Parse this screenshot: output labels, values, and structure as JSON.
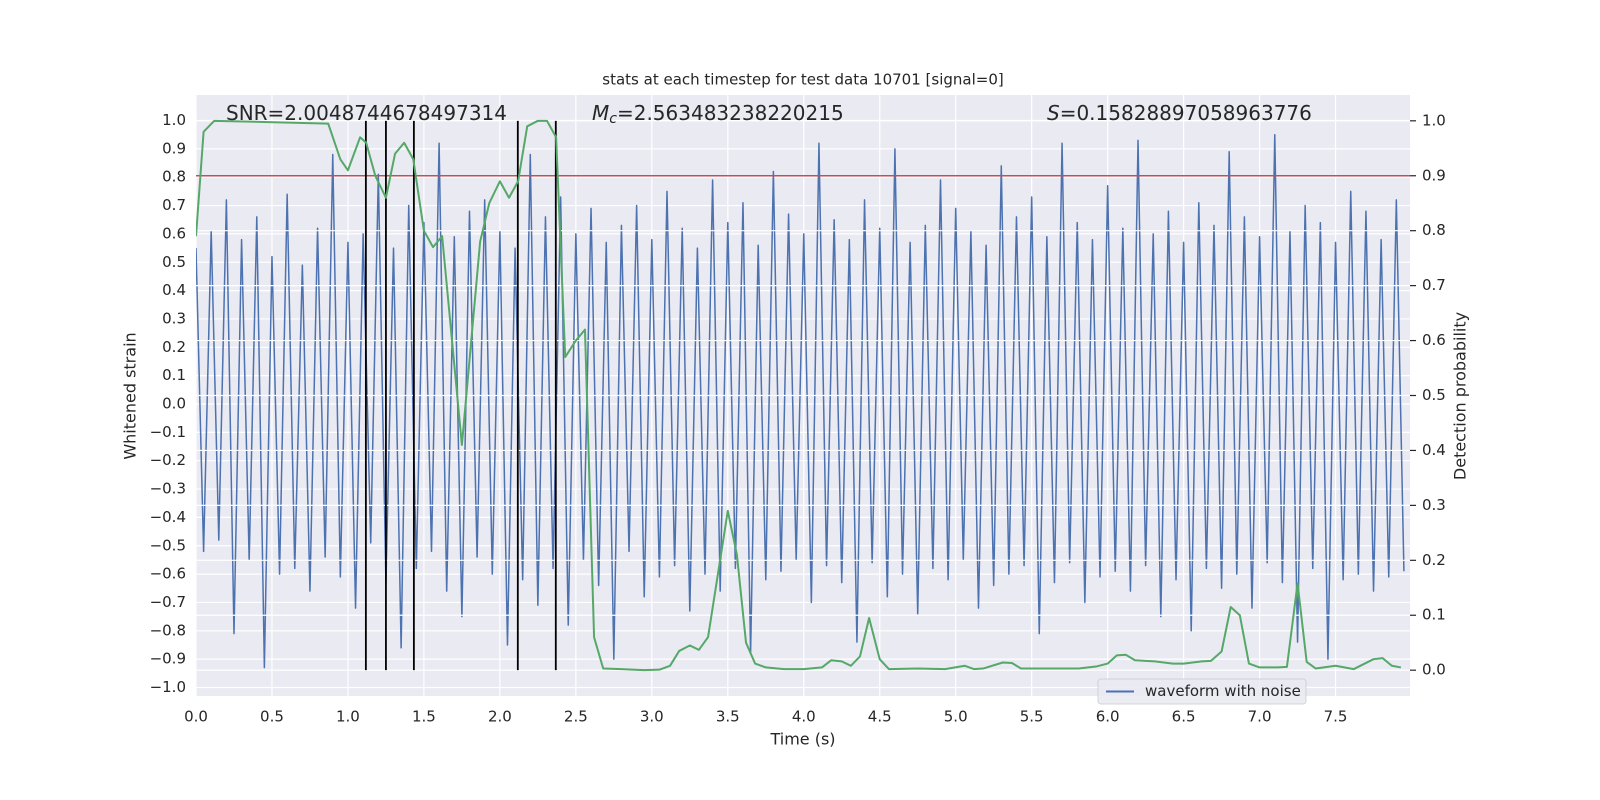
{
  "chart_data": {
    "type": "line",
    "title": "stats at each timestep for test data 10701 [signal=0]",
    "xlabel": "Time (s)",
    "ylabel": "Whitened strain",
    "y2label": "Detection probability",
    "annotations": [
      {
        "text": "SNR=2.0048744678497314"
      },
      {
        "symbol": "M",
        "subscript": "c",
        "text": "=2.563483238220215"
      },
      {
        "symbol": "S",
        "text": "=0.15828897058963776"
      }
    ],
    "xlim": [
      0,
      7.99
    ],
    "ylim": [
      -1.03,
      1.09
    ],
    "y2lim": [
      -0.047,
      1.047
    ],
    "xticks": [
      {
        "value": 0,
        "label": "0.0"
      },
      0.5,
      {
        "value": 1,
        "label": "1.0"
      },
      1.5,
      {
        "value": 2,
        "label": "2.0"
      },
      2.5,
      {
        "value": 3,
        "label": "3.0"
      },
      3.5,
      {
        "value": 4,
        "label": "4.0"
      },
      4.5,
      {
        "value": 5,
        "label": "5.0"
      },
      5.5,
      {
        "value": 6,
        "label": "6.0"
      },
      6.5,
      {
        "value": 7,
        "label": "7.0"
      },
      7.5
    ],
    "yticks": [
      {
        "value": -1,
        "label": "−1.0"
      },
      {
        "value": -0.9,
        "label": "−0.9"
      },
      {
        "value": -0.8,
        "label": "−0.8"
      },
      {
        "value": -0.7,
        "label": "−0.7"
      },
      {
        "value": -0.6,
        "label": "−0.6"
      },
      {
        "value": -0.5,
        "label": "−0.5"
      },
      {
        "value": -0.4,
        "label": "−0.4"
      },
      {
        "value": -0.3,
        "label": "−0.3"
      },
      {
        "value": -0.2,
        "label": "−0.2"
      },
      {
        "value": -0.1,
        "label": "−0.1"
      },
      {
        "value": 0,
        "label": "0.0"
      },
      0.1,
      0.2,
      0.3,
      0.4,
      0.5,
      0.6,
      0.7,
      0.8,
      0.9,
      {
        "value": 1,
        "label": "1.0"
      }
    ],
    "y2ticks": [
      {
        "value": 0,
        "label": "0.0"
      },
      0.1,
      0.2,
      0.3,
      0.4,
      0.5,
      0.6,
      0.7,
      0.8,
      0.9,
      {
        "value": 1,
        "label": "1.0"
      }
    ],
    "grid": true,
    "background": "#eaeaf2",
    "legend": "best",
    "series": [
      {
        "name": "waveform with noise",
        "color": "#4c72b0",
        "x": [
          0,
          0.05,
          0.1,
          0.15,
          0.2,
          0.25,
          0.3,
          0.35,
          0.4,
          0.45,
          0.5,
          0.55,
          0.6,
          0.65,
          0.7,
          0.75,
          0.8,
          0.85,
          0.9,
          0.95,
          1,
          1.05,
          1.1,
          1.15,
          1.2,
          1.25,
          1.3,
          1.35,
          1.4,
          1.45,
          1.5,
          1.55,
          1.6,
          1.65,
          1.7,
          1.75,
          1.8,
          1.85,
          1.9,
          1.95,
          2,
          2.05,
          2.1,
          2.15,
          2.2,
          2.25,
          2.3,
          2.35,
          2.4,
          2.45,
          2.5,
          2.55,
          2.6,
          2.65,
          2.7,
          2.75,
          2.8,
          2.85,
          2.9,
          2.95,
          3,
          3.05,
          3.1,
          3.15,
          3.2,
          3.25,
          3.3,
          3.35,
          3.4,
          3.45,
          3.5,
          3.55,
          3.6,
          3.65,
          3.7,
          3.75,
          3.8,
          3.85,
          3.9,
          3.95,
          4,
          4.05,
          4.1,
          4.15,
          4.2,
          4.25,
          4.3,
          4.35,
          4.4,
          4.45,
          4.5,
          4.55,
          4.6,
          4.65,
          4.7,
          4.75,
          4.8,
          4.85,
          4.9,
          4.95,
          5,
          5.05,
          5.1,
          5.15,
          5.2,
          5.25,
          5.3,
          5.35,
          5.4,
          5.45,
          5.5,
          5.55,
          5.6,
          5.65,
          5.7,
          5.75,
          5.8,
          5.85,
          5.9,
          5.95,
          6,
          6.05,
          6.1,
          6.15,
          6.2,
          6.25,
          6.3,
          6.35,
          6.4,
          6.45,
          6.5,
          6.55,
          6.6,
          6.65,
          6.7,
          6.75,
          6.8,
          6.85,
          6.9,
          6.95,
          7,
          7.05,
          7.1,
          7.15,
          7.2,
          7.25,
          7.3,
          7.35,
          7.4,
          7.45,
          7.5,
          7.55,
          7.6,
          7.65,
          7.7,
          7.75,
          7.8,
          7.85,
          7.9,
          7.95
        ],
        "values": [
          0.55,
          -0.52,
          0.61,
          -0.48,
          0.72,
          -0.81,
          0.58,
          -0.55,
          0.66,
          -0.93,
          0.52,
          -0.6,
          0.74,
          -0.58,
          0.49,
          -0.66,
          0.62,
          -0.54,
          0.88,
          -0.61,
          0.57,
          -0.72,
          0.6,
          -0.49,
          0.81,
          -0.63,
          0.55,
          -0.86,
          0.7,
          -0.58,
          0.64,
          -0.52,
          0.92,
          -0.66,
          0.59,
          -0.75,
          0.68,
          -0.54,
          0.72,
          -0.6,
          0.61,
          -0.85,
          0.55,
          -0.62,
          0.88,
          -0.71,
          0.66,
          -0.58,
          0.73,
          -0.78,
          0.6,
          -0.55,
          0.69,
          -0.64,
          0.57,
          -0.9,
          0.63,
          -0.52,
          0.7,
          -0.68,
          0.58,
          -0.61,
          0.75,
          -0.57,
          0.62,
          -0.73,
          0.55,
          -0.6,
          0.79,
          -0.66,
          0.64,
          -0.58,
          0.71,
          -0.88,
          0.56,
          -0.62,
          0.82,
          -0.59,
          0.67,
          -0.55,
          0.6,
          -0.7,
          0.92,
          -0.57,
          0.65,
          -0.63,
          0.58,
          -0.84,
          0.72,
          -0.56,
          0.62,
          -0.68,
          0.9,
          -0.6,
          0.57,
          -0.74,
          0.63,
          -0.58,
          0.79,
          -0.62,
          0.69,
          -0.55,
          0.61,
          -0.72,
          0.56,
          -0.64,
          0.84,
          -0.6,
          0.66,
          -0.57,
          0.73,
          -0.81,
          0.59,
          -0.63,
          0.92,
          -0.56,
          0.64,
          -0.7,
          0.58,
          -0.61,
          0.77,
          -0.59,
          0.62,
          -0.66,
          0.93,
          -0.57,
          0.6,
          -0.75,
          0.68,
          -0.62,
          0.57,
          -0.8,
          0.71,
          -0.58,
          0.63,
          -0.65,
          0.89,
          -0.6,
          0.66,
          -0.72,
          0.59,
          -0.56,
          0.95,
          -0.63,
          0.61,
          -0.84,
          0.7,
          -0.58,
          0.64,
          -0.9,
          0.57,
          -0.62,
          0.75,
          -0.6,
          0.68,
          -0.66,
          0.58,
          -0.61,
          0.72,
          -0.59
        ]
      },
      {
        "color": "#55a868",
        "axis": "y2",
        "x": [
          0,
          0.05,
          0.12,
          0.87,
          0.95,
          1,
          1.08,
          1.12,
          1.18,
          1.25,
          1.31,
          1.37,
          1.43,
          1.5,
          1.56,
          1.62,
          1.75,
          1.87,
          1.93,
          2,
          2.06,
          2.12,
          2.18,
          2.25,
          2.31,
          2.37,
          2.43,
          2.5,
          2.56,
          2.62,
          2.68,
          2.8,
          2.95,
          3.05,
          3.12,
          3.18,
          3.25,
          3.31,
          3.37,
          3.5,
          3.56,
          3.62,
          3.68,
          3.75,
          3.87,
          4,
          4.12,
          4.18,
          4.25,
          4.31,
          4.37,
          4.43,
          4.5,
          4.56,
          4.75,
          4.93,
          5.06,
          5.12,
          5.18,
          5.31,
          5.37,
          5.43,
          5.62,
          5.81,
          5.93,
          6,
          6.06,
          6.12,
          6.18,
          6.31,
          6.43,
          6.5,
          6.62,
          6.68,
          6.75,
          6.81,
          6.87,
          6.93,
          7,
          7.12,
          7.18,
          7.25,
          7.31,
          7.37,
          7.5,
          7.62,
          7.75,
          7.81,
          7.87,
          7.93
        ],
        "values": [
          0.79,
          0.98,
          1.0,
          0.995,
          0.93,
          0.91,
          0.97,
          0.96,
          0.9,
          0.86,
          0.94,
          0.96,
          0.93,
          0.8,
          0.77,
          0.79,
          0.41,
          0.78,
          0.85,
          0.89,
          0.86,
          0.89,
          0.99,
          1.0,
          1.0,
          0.97,
          0.57,
          0.6,
          0.62,
          0.06,
          0.003,
          0.002,
          0.0,
          0.001,
          0.008,
          0.035,
          0.045,
          0.037,
          0.06,
          0.29,
          0.21,
          0.05,
          0.012,
          0.005,
          0.002,
          0.002,
          0.005,
          0.018,
          0.016,
          0.008,
          0.025,
          0.095,
          0.02,
          0.002,
          0.003,
          0.002,
          0.008,
          0.002,
          0.003,
          0.014,
          0.013,
          0.003,
          0.003,
          0.003,
          0.007,
          0.012,
          0.027,
          0.028,
          0.018,
          0.016,
          0.012,
          0.012,
          0.016,
          0.017,
          0.034,
          0.115,
          0.1,
          0.012,
          0.005,
          0.005,
          0.006,
          0.158,
          0.015,
          0.003,
          0.008,
          0.002,
          0.02,
          0.022,
          0.008,
          0.005
        ]
      }
    ],
    "hlines": [
      {
        "axis": "y2",
        "value": 0.9,
        "color": "#c44e52"
      }
    ],
    "vlines": {
      "axis": "y2",
      "color": "#000000",
      "ymin": 0,
      "ymax": 1,
      "x": [
        1.118,
        1.25,
        1.434,
        2.118,
        2.368
      ]
    }
  }
}
